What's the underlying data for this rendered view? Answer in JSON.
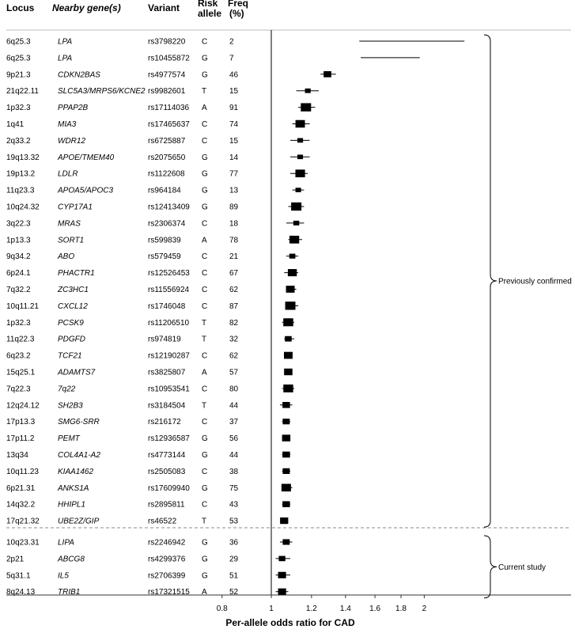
{
  "chart_data": {
    "type": "forest",
    "headers": [
      "Locus",
      "Nearby gene(s)",
      "Variant",
      "Risk allele",
      "Freq (%)"
    ],
    "xlabel": "Per-allele odds ratio for CAD",
    "x_ticks": [
      "0.8",
      "1",
      "1.2",
      "1.4",
      "1.6",
      "1.8",
      "2"
    ],
    "x_scale": "log",
    "xlim": [
      0.8,
      2.3
    ],
    "reference_line": 1,
    "rows": [
      {
        "locus": "6q25.3",
        "gene": "LPA",
        "variant": "rs3798220",
        "allele": "C",
        "freq": "2",
        "or": null,
        "lo": 1.49,
        "hi": 2.4
      },
      {
        "locus": "6q25.3",
        "gene": "LPA",
        "variant": "rs10455872",
        "allele": "G",
        "freq": "7",
        "or": null,
        "lo": 1.5,
        "hi": 1.96
      },
      {
        "locus": "9p21.3",
        "gene": "CDKN2BAS",
        "variant": "rs4977574",
        "allele": "G",
        "freq": "46",
        "or": 1.29,
        "lo": 1.25,
        "hi": 1.34
      },
      {
        "locus": "21q22.11",
        "gene": "SLC5A3/MRPS6/KCNE2",
        "variant": "rs9982601",
        "allele": "T",
        "freq": "15",
        "or": 1.18,
        "lo": 1.12,
        "hi": 1.24
      },
      {
        "locus": "1p32.3",
        "gene": "PPAP2B",
        "variant": "rs17114036",
        "allele": "A",
        "freq": "91",
        "or": 1.17,
        "lo": 1.13,
        "hi": 1.22
      },
      {
        "locus": "1q41",
        "gene": "MIA3",
        "variant": "rs17465637",
        "allele": "C",
        "freq": "74",
        "or": 1.14,
        "lo": 1.1,
        "hi": 1.19
      },
      {
        "locus": "2q33.2",
        "gene": "WDR12",
        "variant": "rs6725887",
        "allele": "C",
        "freq": "15",
        "or": 1.14,
        "lo": 1.09,
        "hi": 1.19
      },
      {
        "locus": "19q13.32",
        "gene": "APOE/TMEM40",
        "variant": "rs2075650",
        "allele": "G",
        "freq": "14",
        "or": 1.14,
        "lo": 1.09,
        "hi": 1.19
      },
      {
        "locus": "19p13.2",
        "gene": "LDLR",
        "variant": "rs1122608",
        "allele": "G",
        "freq": "77",
        "or": 1.14,
        "lo": 1.09,
        "hi": 1.18
      },
      {
        "locus": "11q23.3",
        "gene": "APOA5/APOC3",
        "variant": "rs964184",
        "allele": "G",
        "freq": "13",
        "or": 1.13,
        "lo": 1.1,
        "hi": 1.16
      },
      {
        "locus": "10q24.32",
        "gene": "CYP17A1",
        "variant": "rs12413409",
        "allele": "G",
        "freq": "89",
        "or": 1.12,
        "lo": 1.08,
        "hi": 1.16
      },
      {
        "locus": "3q22.3",
        "gene": "MRAS",
        "variant": "rs2306374",
        "allele": "C",
        "freq": "18",
        "or": 1.12,
        "lo": 1.07,
        "hi": 1.16
      },
      {
        "locus": "1p13.3",
        "gene": "SORT1",
        "variant": "rs599839",
        "allele": "A",
        "freq": "78",
        "or": 1.11,
        "lo": 1.08,
        "hi": 1.15
      },
      {
        "locus": "9q34.2",
        "gene": "ABO",
        "variant": "rs579459",
        "allele": "C",
        "freq": "21",
        "or": 1.1,
        "lo": 1.07,
        "hi": 1.13
      },
      {
        "locus": "6p24.1",
        "gene": "PHACTR1",
        "variant": "rs12526453",
        "allele": "C",
        "freq": "67",
        "or": 1.1,
        "lo": 1.06,
        "hi": 1.13
      },
      {
        "locus": "7q32.2",
        "gene": "ZC3HC1",
        "variant": "rs11556924",
        "allele": "C",
        "freq": "62",
        "or": 1.09,
        "lo": 1.07,
        "hi": 1.12
      },
      {
        "locus": "10q11.21",
        "gene": "CXCL12",
        "variant": "rs1746048",
        "allele": "C",
        "freq": "87",
        "or": 1.09,
        "lo": 1.07,
        "hi": 1.13
      },
      {
        "locus": "1p32.3",
        "gene": "PCSK9",
        "variant": "rs11206510",
        "allele": "T",
        "freq": "82",
        "or": 1.08,
        "lo": 1.05,
        "hi": 1.11
      },
      {
        "locus": "11q22.3",
        "gene": "PDGFD",
        "variant": "rs974819",
        "allele": "T",
        "freq": "32",
        "or": 1.08,
        "lo": 1.06,
        "hi": 1.11
      },
      {
        "locus": "6q23.2",
        "gene": "TCF21",
        "variant": "rs12190287",
        "allele": "C",
        "freq": "62",
        "or": 1.08,
        "lo": 1.06,
        "hi": 1.1
      },
      {
        "locus": "15q25.1",
        "gene": "ADAMTS7",
        "variant": "rs3825807",
        "allele": "A",
        "freq": "57",
        "or": 1.08,
        "lo": 1.06,
        "hi": 1.1
      },
      {
        "locus": "7q22.3",
        "gene": "7q22",
        "variant": "rs10953541",
        "allele": "C",
        "freq": "80",
        "or": 1.08,
        "lo": 1.05,
        "hi": 1.11
      },
      {
        "locus": "12q24.12",
        "gene": "SH2B3",
        "variant": "rs3184504",
        "allele": "T",
        "freq": "44",
        "or": 1.07,
        "lo": 1.04,
        "hi": 1.1
      },
      {
        "locus": "17p13.3",
        "gene": "SMG6-SRR",
        "variant": "rs216172",
        "allele": "C",
        "freq": "37",
        "or": 1.07,
        "lo": 1.05,
        "hi": 1.09
      },
      {
        "locus": "17p11.2",
        "gene": "PEMT",
        "variant": "rs12936587",
        "allele": "G",
        "freq": "56",
        "or": 1.07,
        "lo": 1.05,
        "hi": 1.09
      },
      {
        "locus": "13q34",
        "gene": "COL4A1-A2",
        "variant": "rs4773144",
        "allele": "G",
        "freq": "44",
        "or": 1.07,
        "lo": 1.05,
        "hi": 1.09
      },
      {
        "locus": "10q11.23",
        "gene": "KIAA1462",
        "variant": "rs2505083",
        "allele": "C",
        "freq": "38",
        "or": 1.07,
        "lo": 1.05,
        "hi": 1.09
      },
      {
        "locus": "6p21.31",
        "gene": "ANKS1A",
        "variant": "rs17609940",
        "allele": "G",
        "freq": "75",
        "or": 1.07,
        "lo": 1.05,
        "hi": 1.1
      },
      {
        "locus": "14q32.2",
        "gene": "HHIPL1",
        "variant": "rs2895811",
        "allele": "C",
        "freq": "43",
        "or": 1.07,
        "lo": 1.05,
        "hi": 1.09
      },
      {
        "locus": "17q21.32",
        "gene": "UBE2Z/GIP",
        "variant": "rs46522",
        "allele": "T",
        "freq": "53",
        "or": 1.06,
        "lo": 1.04,
        "hi": 1.08
      },
      {
        "locus": "10q23.31",
        "gene": "LIPA",
        "variant": "rs2246942",
        "allele": "G",
        "freq": "36",
        "or": 1.07,
        "lo": 1.04,
        "hi": 1.1
      },
      {
        "locus": "2p21",
        "gene": "ABCG8",
        "variant": "rs4299376",
        "allele": "G",
        "freq": "29",
        "or": 1.05,
        "lo": 1.02,
        "hi": 1.09
      },
      {
        "locus": "5q31.1",
        "gene": "IL5",
        "variant": "rs2706399",
        "allele": "G",
        "freq": "51",
        "or": 1.05,
        "lo": 1.02,
        "hi": 1.09
      },
      {
        "locus": "8q24.13",
        "gene": "TRIB1",
        "variant": "rs17321515",
        "allele": "A",
        "freq": "52",
        "or": 1.05,
        "lo": 1.02,
        "hi": 1.08
      }
    ],
    "groups": [
      {
        "label": "Previously confirmed",
        "from": 0,
        "to": 29
      },
      {
        "label": "Current study",
        "from": 30,
        "to": 33
      }
    ]
  }
}
